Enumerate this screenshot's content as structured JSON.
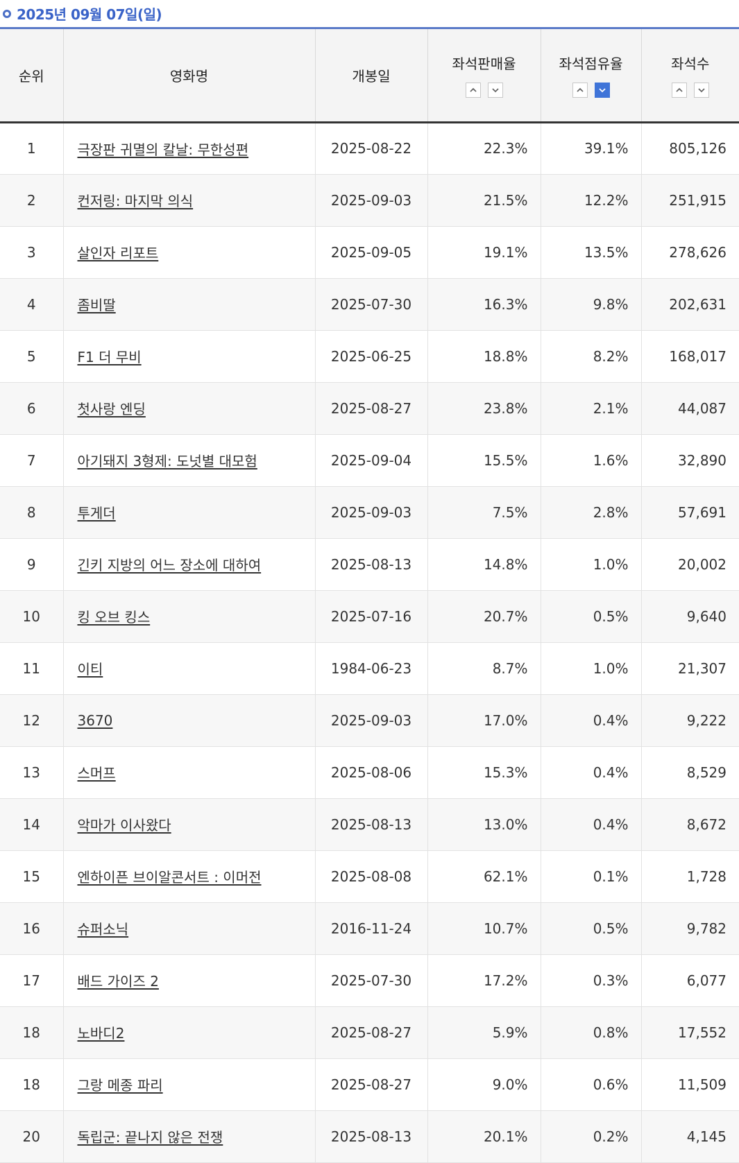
{
  "header": {
    "date": "2025년 09월 07일(일)"
  },
  "columns": {
    "rank": "순위",
    "title": "영화명",
    "release": "개봉일",
    "sales_rate": "좌석판매율",
    "share": "좌석점유율",
    "seats": "좌석수"
  },
  "sort": {
    "active": "share-desc"
  },
  "rows": [
    {
      "rank": "1",
      "title": "극장판 귀멸의 칼날: 무한성편",
      "release": "2025-08-22",
      "sales_rate": "22.3%",
      "share": "39.1%",
      "seats": "805,126"
    },
    {
      "rank": "2",
      "title": "컨저링: 마지막 의식",
      "release": "2025-09-03",
      "sales_rate": "21.5%",
      "share": "12.2%",
      "seats": "251,915"
    },
    {
      "rank": "3",
      "title": "살인자 리포트",
      "release": "2025-09-05",
      "sales_rate": "19.1%",
      "share": "13.5%",
      "seats": "278,626"
    },
    {
      "rank": "4",
      "title": "좀비딸",
      "release": "2025-07-30",
      "sales_rate": "16.3%",
      "share": "9.8%",
      "seats": "202,631"
    },
    {
      "rank": "5",
      "title": "F1 더 무비",
      "release": "2025-06-25",
      "sales_rate": "18.8%",
      "share": "8.2%",
      "seats": "168,017"
    },
    {
      "rank": "6",
      "title": "첫사랑 엔딩",
      "release": "2025-08-27",
      "sales_rate": "23.8%",
      "share": "2.1%",
      "seats": "44,087"
    },
    {
      "rank": "7",
      "title": "아기돼지 3형제: 도넛별 대모험",
      "release": "2025-09-04",
      "sales_rate": "15.5%",
      "share": "1.6%",
      "seats": "32,890"
    },
    {
      "rank": "8",
      "title": "투게더",
      "release": "2025-09-03",
      "sales_rate": "7.5%",
      "share": "2.8%",
      "seats": "57,691"
    },
    {
      "rank": "9",
      "title": "긴키 지방의 어느 장소에 대하여",
      "release": "2025-08-13",
      "sales_rate": "14.8%",
      "share": "1.0%",
      "seats": "20,002"
    },
    {
      "rank": "10",
      "title": "킹 오브 킹스",
      "release": "2025-07-16",
      "sales_rate": "20.7%",
      "share": "0.5%",
      "seats": "9,640"
    },
    {
      "rank": "11",
      "title": "이티",
      "release": "1984-06-23",
      "sales_rate": "8.7%",
      "share": "1.0%",
      "seats": "21,307"
    },
    {
      "rank": "12",
      "title": "3670",
      "release": "2025-09-03",
      "sales_rate": "17.0%",
      "share": "0.4%",
      "seats": "9,222"
    },
    {
      "rank": "13",
      "title": "스머프",
      "release": "2025-08-06",
      "sales_rate": "15.3%",
      "share": "0.4%",
      "seats": "8,529"
    },
    {
      "rank": "14",
      "title": "악마가 이사왔다",
      "release": "2025-08-13",
      "sales_rate": "13.0%",
      "share": "0.4%",
      "seats": "8,672"
    },
    {
      "rank": "15",
      "title": "엔하이픈 브이알콘서트 : 이머전",
      "release": "2025-08-08",
      "sales_rate": "62.1%",
      "share": "0.1%",
      "seats": "1,728"
    },
    {
      "rank": "16",
      "title": "슈퍼소닉",
      "release": "2016-11-24",
      "sales_rate": "10.7%",
      "share": "0.5%",
      "seats": "9,782"
    },
    {
      "rank": "17",
      "title": "배드 가이즈 2",
      "release": "2025-07-30",
      "sales_rate": "17.2%",
      "share": "0.3%",
      "seats": "6,077"
    },
    {
      "rank": "18",
      "title": "노바디2",
      "release": "2025-08-27",
      "sales_rate": "5.9%",
      "share": "0.8%",
      "seats": "17,552"
    },
    {
      "rank": "18",
      "title": "그랑 메종 파리",
      "release": "2025-08-27",
      "sales_rate": "9.0%",
      "share": "0.6%",
      "seats": "11,509"
    },
    {
      "rank": "20",
      "title": "독립군: 끝나지 않은 전쟁",
      "release": "2025-08-13",
      "sales_rate": "20.1%",
      "share": "0.2%",
      "seats": "4,145"
    }
  ]
}
